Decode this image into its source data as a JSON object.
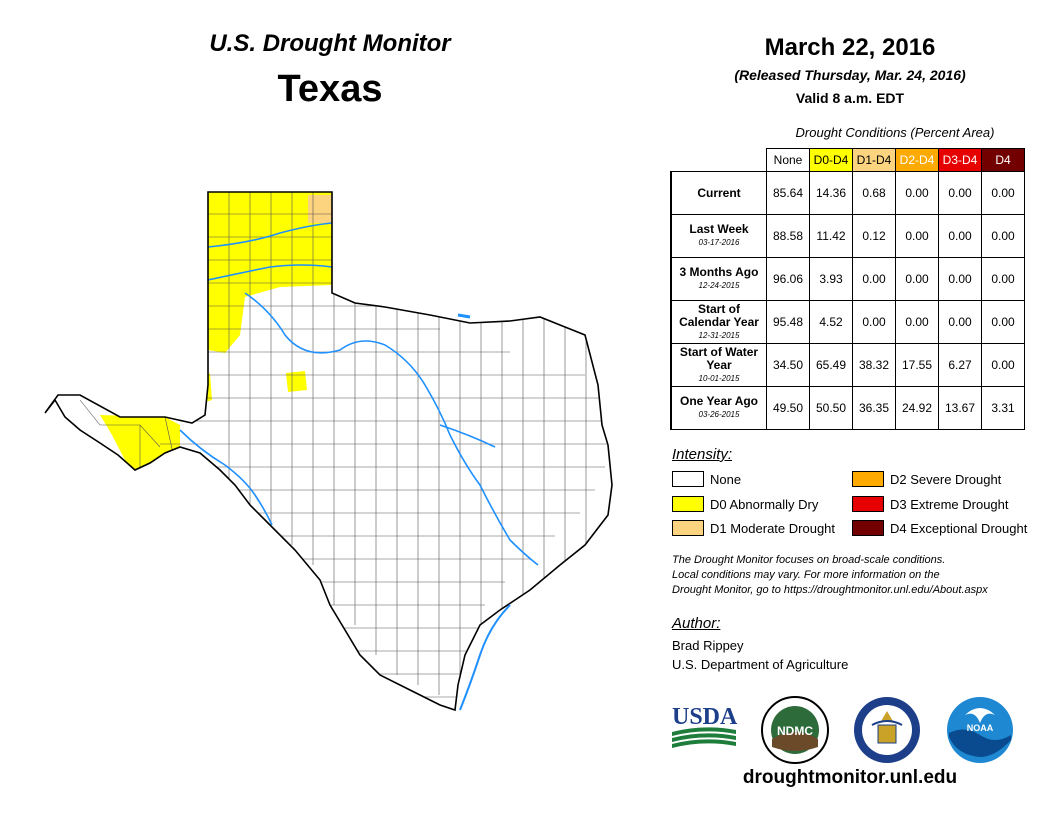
{
  "header": {
    "title": "U.S. Drought Monitor",
    "state": "Texas",
    "date": "March 22, 2016",
    "released": "(Released Thursday, Mar. 24, 2016)",
    "valid": "Valid 8 a.m. EDT"
  },
  "conditions": {
    "caption": "Drought Conditions (Percent Area)",
    "columns": [
      {
        "label": "None",
        "color": "#ffffff",
        "text_color": "#000000"
      },
      {
        "label": "D0-D4",
        "color": "#ffff00",
        "text_color": "#000000"
      },
      {
        "label": "D1-D4",
        "color": "#fcd37f",
        "text_color": "#000000"
      },
      {
        "label": "D2-D4",
        "color": "#ffaa00",
        "text_color": "#ffffff"
      },
      {
        "label": "D3-D4",
        "color": "#e60000",
        "text_color": "#ffffff"
      },
      {
        "label": "D4",
        "color": "#730000",
        "text_color": "#ffffff"
      }
    ],
    "rows": [
      {
        "label": "Current",
        "date": "",
        "values": [
          "85.64",
          "14.36",
          "0.68",
          "0.00",
          "0.00",
          "0.00"
        ]
      },
      {
        "label": "Last Week",
        "date": "03-17-2016",
        "values": [
          "88.58",
          "11.42",
          "0.12",
          "0.00",
          "0.00",
          "0.00"
        ]
      },
      {
        "label": "3 Months Ago",
        "date": "12-24-2015",
        "values": [
          "96.06",
          "3.93",
          "0.00",
          "0.00",
          "0.00",
          "0.00"
        ]
      },
      {
        "label": "Start of Calendar Year",
        "date": "12-31-2015",
        "values": [
          "95.48",
          "4.52",
          "0.00",
          "0.00",
          "0.00",
          "0.00"
        ]
      },
      {
        "label": "Start of Water Year",
        "date": "10-01-2015",
        "values": [
          "34.50",
          "65.49",
          "38.32",
          "17.55",
          "6.27",
          "0.00"
        ]
      },
      {
        "label": "One Year Ago",
        "date": "03-26-2015",
        "values": [
          "49.50",
          "50.50",
          "36.35",
          "24.92",
          "13.67",
          "3.31"
        ]
      }
    ]
  },
  "legend": {
    "title": "Intensity:",
    "items": [
      {
        "label": "None",
        "color": "#ffffff"
      },
      {
        "label": "D0 Abnormally Dry",
        "color": "#ffff00"
      },
      {
        "label": "D1 Moderate Drought",
        "color": "#fcd37f"
      },
      {
        "label": "D2 Severe Drought",
        "color": "#ffaa00"
      },
      {
        "label": "D3 Extreme Drought",
        "color": "#e60000"
      },
      {
        "label": "D4 Exceptional Drought",
        "color": "#730000"
      }
    ]
  },
  "note": {
    "line1": "The Drought Monitor focuses on broad-scale conditions.",
    "line2": "Local conditions may vary. For more information on the",
    "line3": "Drought Monitor, go to https://droughtmonitor.unl.edu/About.aspx"
  },
  "author": {
    "title": "Author:",
    "name": "Brad Rippey",
    "org": "U.S. Department of Agriculture"
  },
  "logos": {
    "usda": "USDA",
    "ndmc": "NDMC",
    "noaa": "NOAA"
  },
  "website": "droughtmonitor.unl.edu",
  "map": {
    "state_name": "Texas",
    "water_color": "#1e90ff",
    "d0_color": "#ffff00",
    "d1_color": "#fcd37f"
  }
}
